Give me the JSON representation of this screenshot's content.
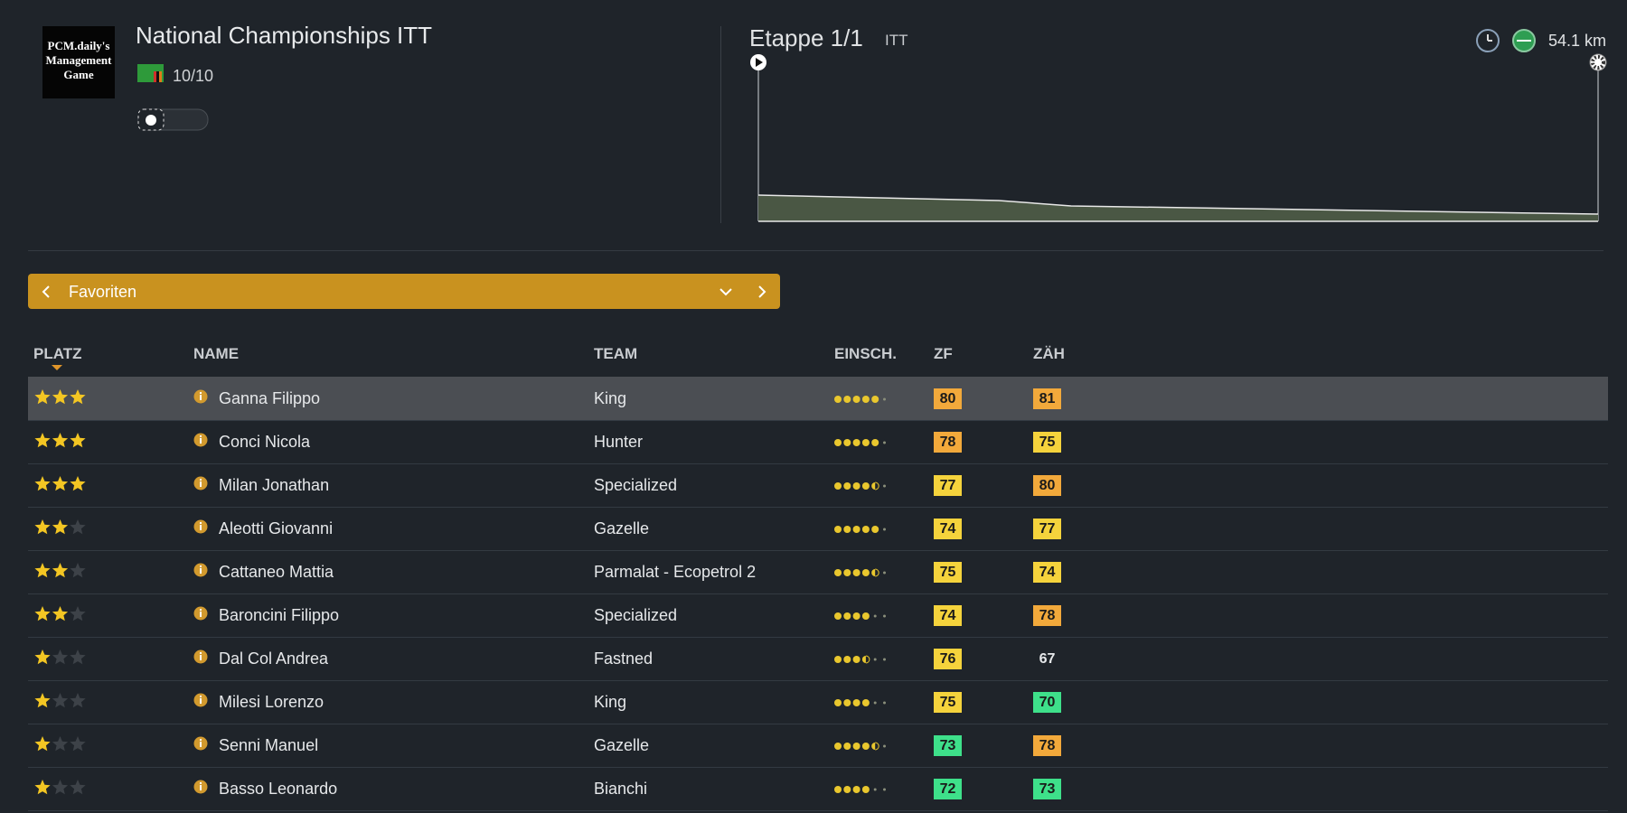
{
  "header": {
    "logo_lines": [
      "PCM.daily's",
      "Management",
      "Game"
    ]
  },
  "race": {
    "title": "National Championships ITT",
    "class": "10/10"
  },
  "stage": {
    "title": "Etappe 1/1",
    "type": "ITT",
    "distance": "54.1 km"
  },
  "filter": {
    "label": "Favoriten"
  },
  "table": {
    "columns": [
      "PLATZ",
      "NAME",
      "TEAM",
      "EINSCH.",
      "ZF",
      "ZÄH"
    ],
    "rating_max": 6,
    "star_max": 3,
    "rows": [
      {
        "stars": 3,
        "name": "Ganna Filippo",
        "team": "King",
        "rating": 5,
        "zf": 80,
        "zf_color": "#f2a93b",
        "zah": 81,
        "zah_color": "#f2a93b"
      },
      {
        "stars": 3,
        "name": "Conci Nicola",
        "team": "Hunter",
        "rating": 5,
        "zf": 78,
        "zf_color": "#f2a93b",
        "zah": 75,
        "zah_color": "#f5d33c"
      },
      {
        "stars": 3,
        "name": "Milan Jonathan",
        "team": "Specialized",
        "rating": 4.5,
        "zf": 77,
        "zf_color": "#f5d33c",
        "zah": 80,
        "zah_color": "#f2a93b"
      },
      {
        "stars": 2,
        "name": "Aleotti Giovanni",
        "team": "Gazelle",
        "rating": 5,
        "zf": 74,
        "zf_color": "#f5d33c",
        "zah": 77,
        "zah_color": "#f5d33c"
      },
      {
        "stars": 2,
        "name": "Cattaneo Mattia",
        "team": "Parmalat - Ecopetrol 2",
        "rating": 4.5,
        "zf": 75,
        "zf_color": "#f5d33c",
        "zah": 74,
        "zah_color": "#f5d33c"
      },
      {
        "stars": 2,
        "name": "Baroncini Filippo",
        "team": "Specialized",
        "rating": 4,
        "zf": 74,
        "zf_color": "#f5d33c",
        "zah": 78,
        "zah_color": "#f2a93b"
      },
      {
        "stars": 1,
        "name": "Dal Col Andrea",
        "team": "Fastned",
        "rating": 3.5,
        "zf": 76,
        "zf_color": "#f5d33c",
        "zah": 67,
        "zah_color": null
      },
      {
        "stars": 1,
        "name": "Milesi Lorenzo",
        "team": "King",
        "rating": 4,
        "zf": 75,
        "zf_color": "#f5d33c",
        "zah": 70,
        "zah_color": "#3ee08a"
      },
      {
        "stars": 1,
        "name": "Senni Manuel",
        "team": "Gazelle",
        "rating": 4.5,
        "zf": 73,
        "zf_color": "#3ee08a",
        "zah": 78,
        "zah_color": "#f2a93b"
      },
      {
        "stars": 1,
        "name": "Basso Leonardo",
        "team": "Bianchi",
        "rating": 4,
        "zf": 72,
        "zf_color": "#3ee08a",
        "zah": 73,
        "zah_color": "#3ee08a"
      }
    ]
  }
}
